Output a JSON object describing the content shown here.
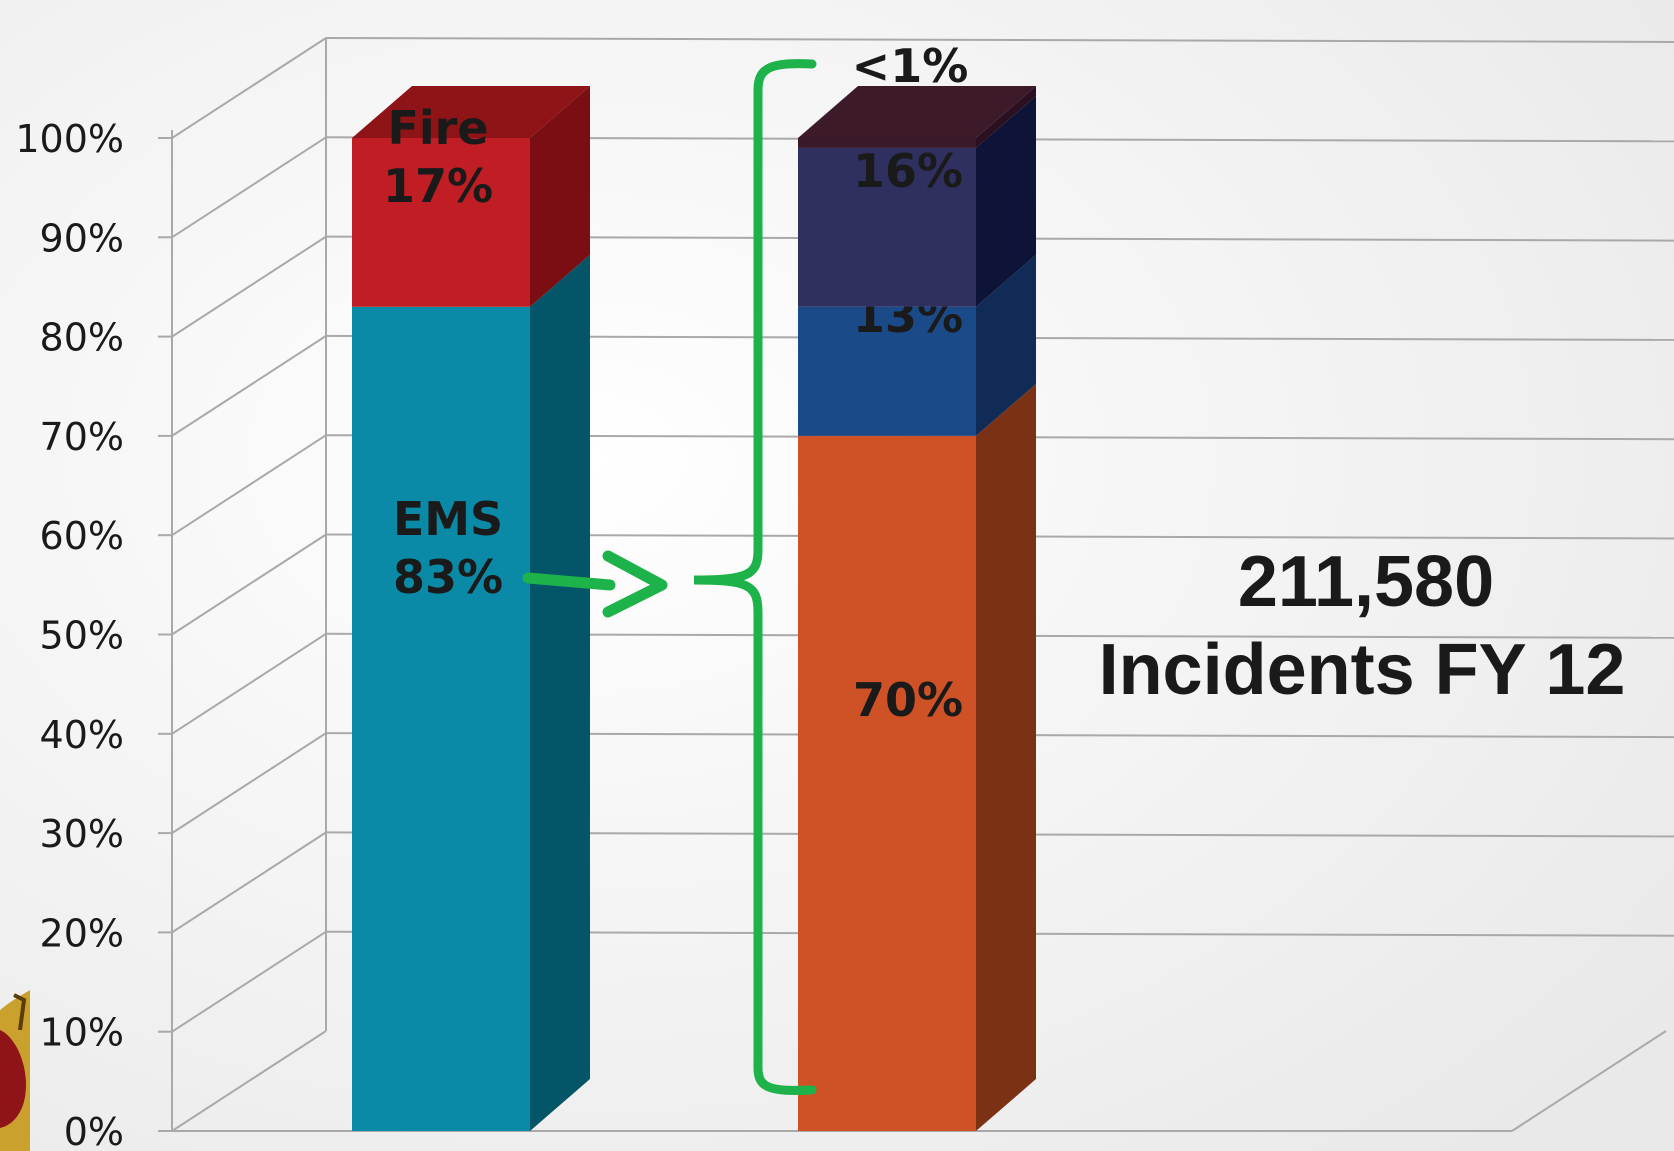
{
  "chart_data": {
    "type": "bar",
    "stacked": true,
    "three_d": true,
    "ylim": [
      0,
      100
    ],
    "y_ticks": [
      "0%",
      "10%",
      "20%",
      "30%",
      "40%",
      "50%",
      "60%",
      "70%",
      "80%",
      "90%",
      "100%"
    ],
    "grid": true,
    "bars": [
      {
        "segments": [
          {
            "value": 83,
            "label": "EMS",
            "value_label": "83%",
            "color": "#0a8aa6",
            "side_color": "#055568",
            "top_color": "#0a8aa6"
          },
          {
            "value": 17,
            "label": "Fire",
            "value_label": "17%",
            "color": "#c01e24",
            "side_color": "#7a0e12",
            "top_color": "#8e1418"
          }
        ]
      },
      {
        "segments": [
          {
            "value": 70,
            "label": "",
            "value_label": "70%",
            "color": "#cf5227",
            "side_color": "#7b3214"
          },
          {
            "value": 13,
            "label": "",
            "value_label": "13%",
            "color": "#1a4a87",
            "side_color": "#102b55"
          },
          {
            "value": 16,
            "label": "",
            "value_label": "16%",
            "color": "#2f3060",
            "side_color": "#0e1338"
          },
          {
            "value": 1,
            "label": "",
            "value_label": "<1%",
            "color": "#3a1a2a",
            "side_color": "#2a1020",
            "top_color": "#3d1a2a"
          }
        ]
      }
    ],
    "annotation": {
      "line1": "211,580",
      "line2": "Incidents FY 12"
    },
    "colors": {
      "arrow": "#1db34a",
      "bracket": "#1db34a",
      "grid": "#a9a9a9"
    }
  }
}
